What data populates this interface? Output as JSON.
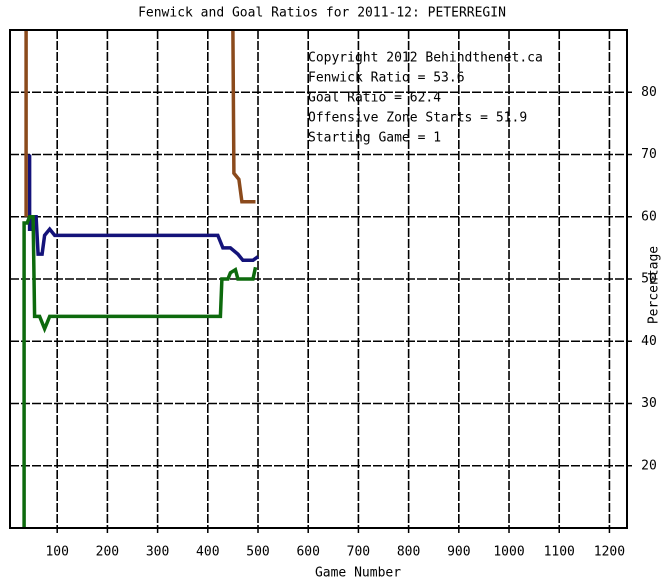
{
  "chart_data": {
    "type": "line",
    "title": "Fenwick and Goal Ratios for 2011-12: PETERREGIN",
    "x_label": "Game Number",
    "y_label": "Percentage",
    "xlim": [
      6,
      1235
    ],
    "ylim": [
      10,
      90
    ],
    "xticks": [
      100,
      200,
      300,
      400,
      500,
      600,
      700,
      800,
      900,
      1000,
      1100,
      1200
    ],
    "yticks": [
      20,
      30,
      40,
      50,
      60,
      70,
      80
    ],
    "grid": true,
    "annotations": [
      {
        "text": "Copyright 2012 Behindthenet.ca",
        "color": "#000000"
      },
      {
        "text": "Fenwick Ratio = 53.6",
        "color": "#14137a"
      },
      {
        "text": "Goal Ratio = 62.4",
        "color": "#8b4a1c"
      },
      {
        "text": "Offensive Zone Starts = 51.9",
        "color": "#0d6a0d"
      },
      {
        "text": "Starting Game = 1",
        "color": "#000000"
      }
    ],
    "series": [
      {
        "name": "Fenwick Ratio",
        "color": "#14137a",
        "x": [
          45,
          45,
          50,
          52,
          58,
          62,
          70,
          75,
          85,
          95,
          420,
          430,
          445,
          460,
          470,
          490,
          500
        ],
        "values": [
          70,
          58,
          58,
          60,
          60,
          54,
          54,
          57,
          58,
          57,
          57,
          55,
          55,
          54,
          53,
          53,
          53.6
        ]
      },
      {
        "name": "Goal Ratio",
        "color": "#8b4a1c",
        "x": [
          38,
          38,
          40,
          450,
          452,
          462,
          468,
          495
        ],
        "values": [
          90,
          60,
          null,
          90,
          67,
          66,
          62.4,
          62.4
        ]
      },
      {
        "name": "Offensive Zone Starts",
        "color": "#0d6a0d",
        "x": [
          34,
          34,
          40,
          45,
          52,
          55,
          65,
          75,
          80,
          85,
          425,
          428,
          440,
          445,
          455,
          460,
          490,
          495
        ],
        "values": [
          10,
          59,
          59,
          60,
          60,
          44,
          44,
          42,
          43,
          44,
          44,
          50,
          50,
          51,
          51.5,
          50,
          50,
          51.9
        ]
      }
    ]
  }
}
